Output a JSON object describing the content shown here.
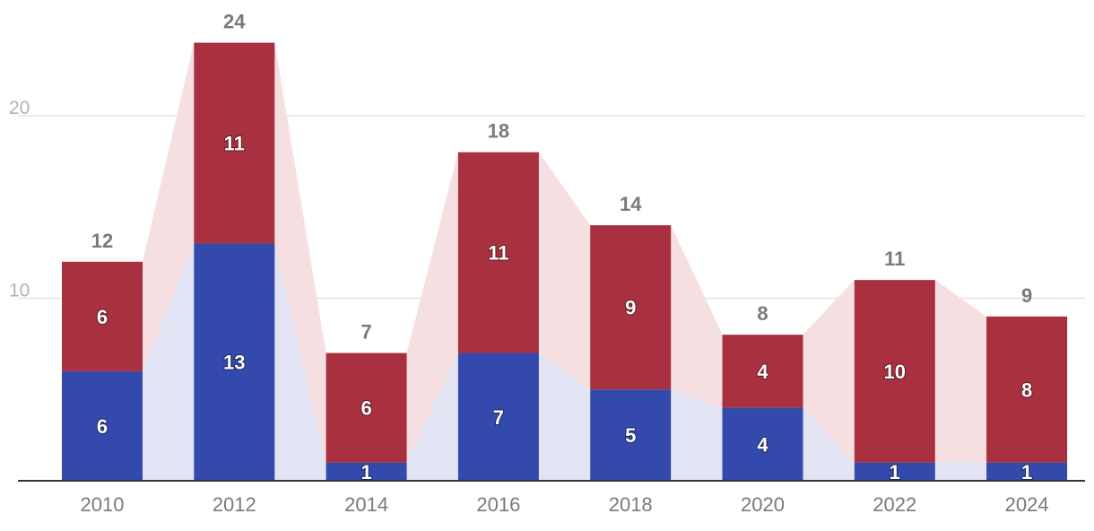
{
  "chart_data": {
    "type": "bar",
    "stacked": true,
    "categories": [
      "2010",
      "2012",
      "2014",
      "2016",
      "2018",
      "2020",
      "2022",
      "2024"
    ],
    "series": [
      {
        "values": [
          6,
          13,
          1,
          7,
          5,
          4,
          1,
          1
        ],
        "color": "#3349ab",
        "area_color": "#e2e4f3"
      },
      {
        "values": [
          6,
          11,
          6,
          11,
          9,
          4,
          10,
          8
        ],
        "color": "#a8303f",
        "area_color": "#f5dfe1"
      }
    ],
    "totals": [
      12,
      24,
      7,
      18,
      14,
      8,
      11,
      9
    ],
    "yticks": [
      10,
      20
    ],
    "ylim": [
      0,
      24
    ],
    "grid": true,
    "title": "",
    "xlabel": "",
    "ylabel": ""
  }
}
